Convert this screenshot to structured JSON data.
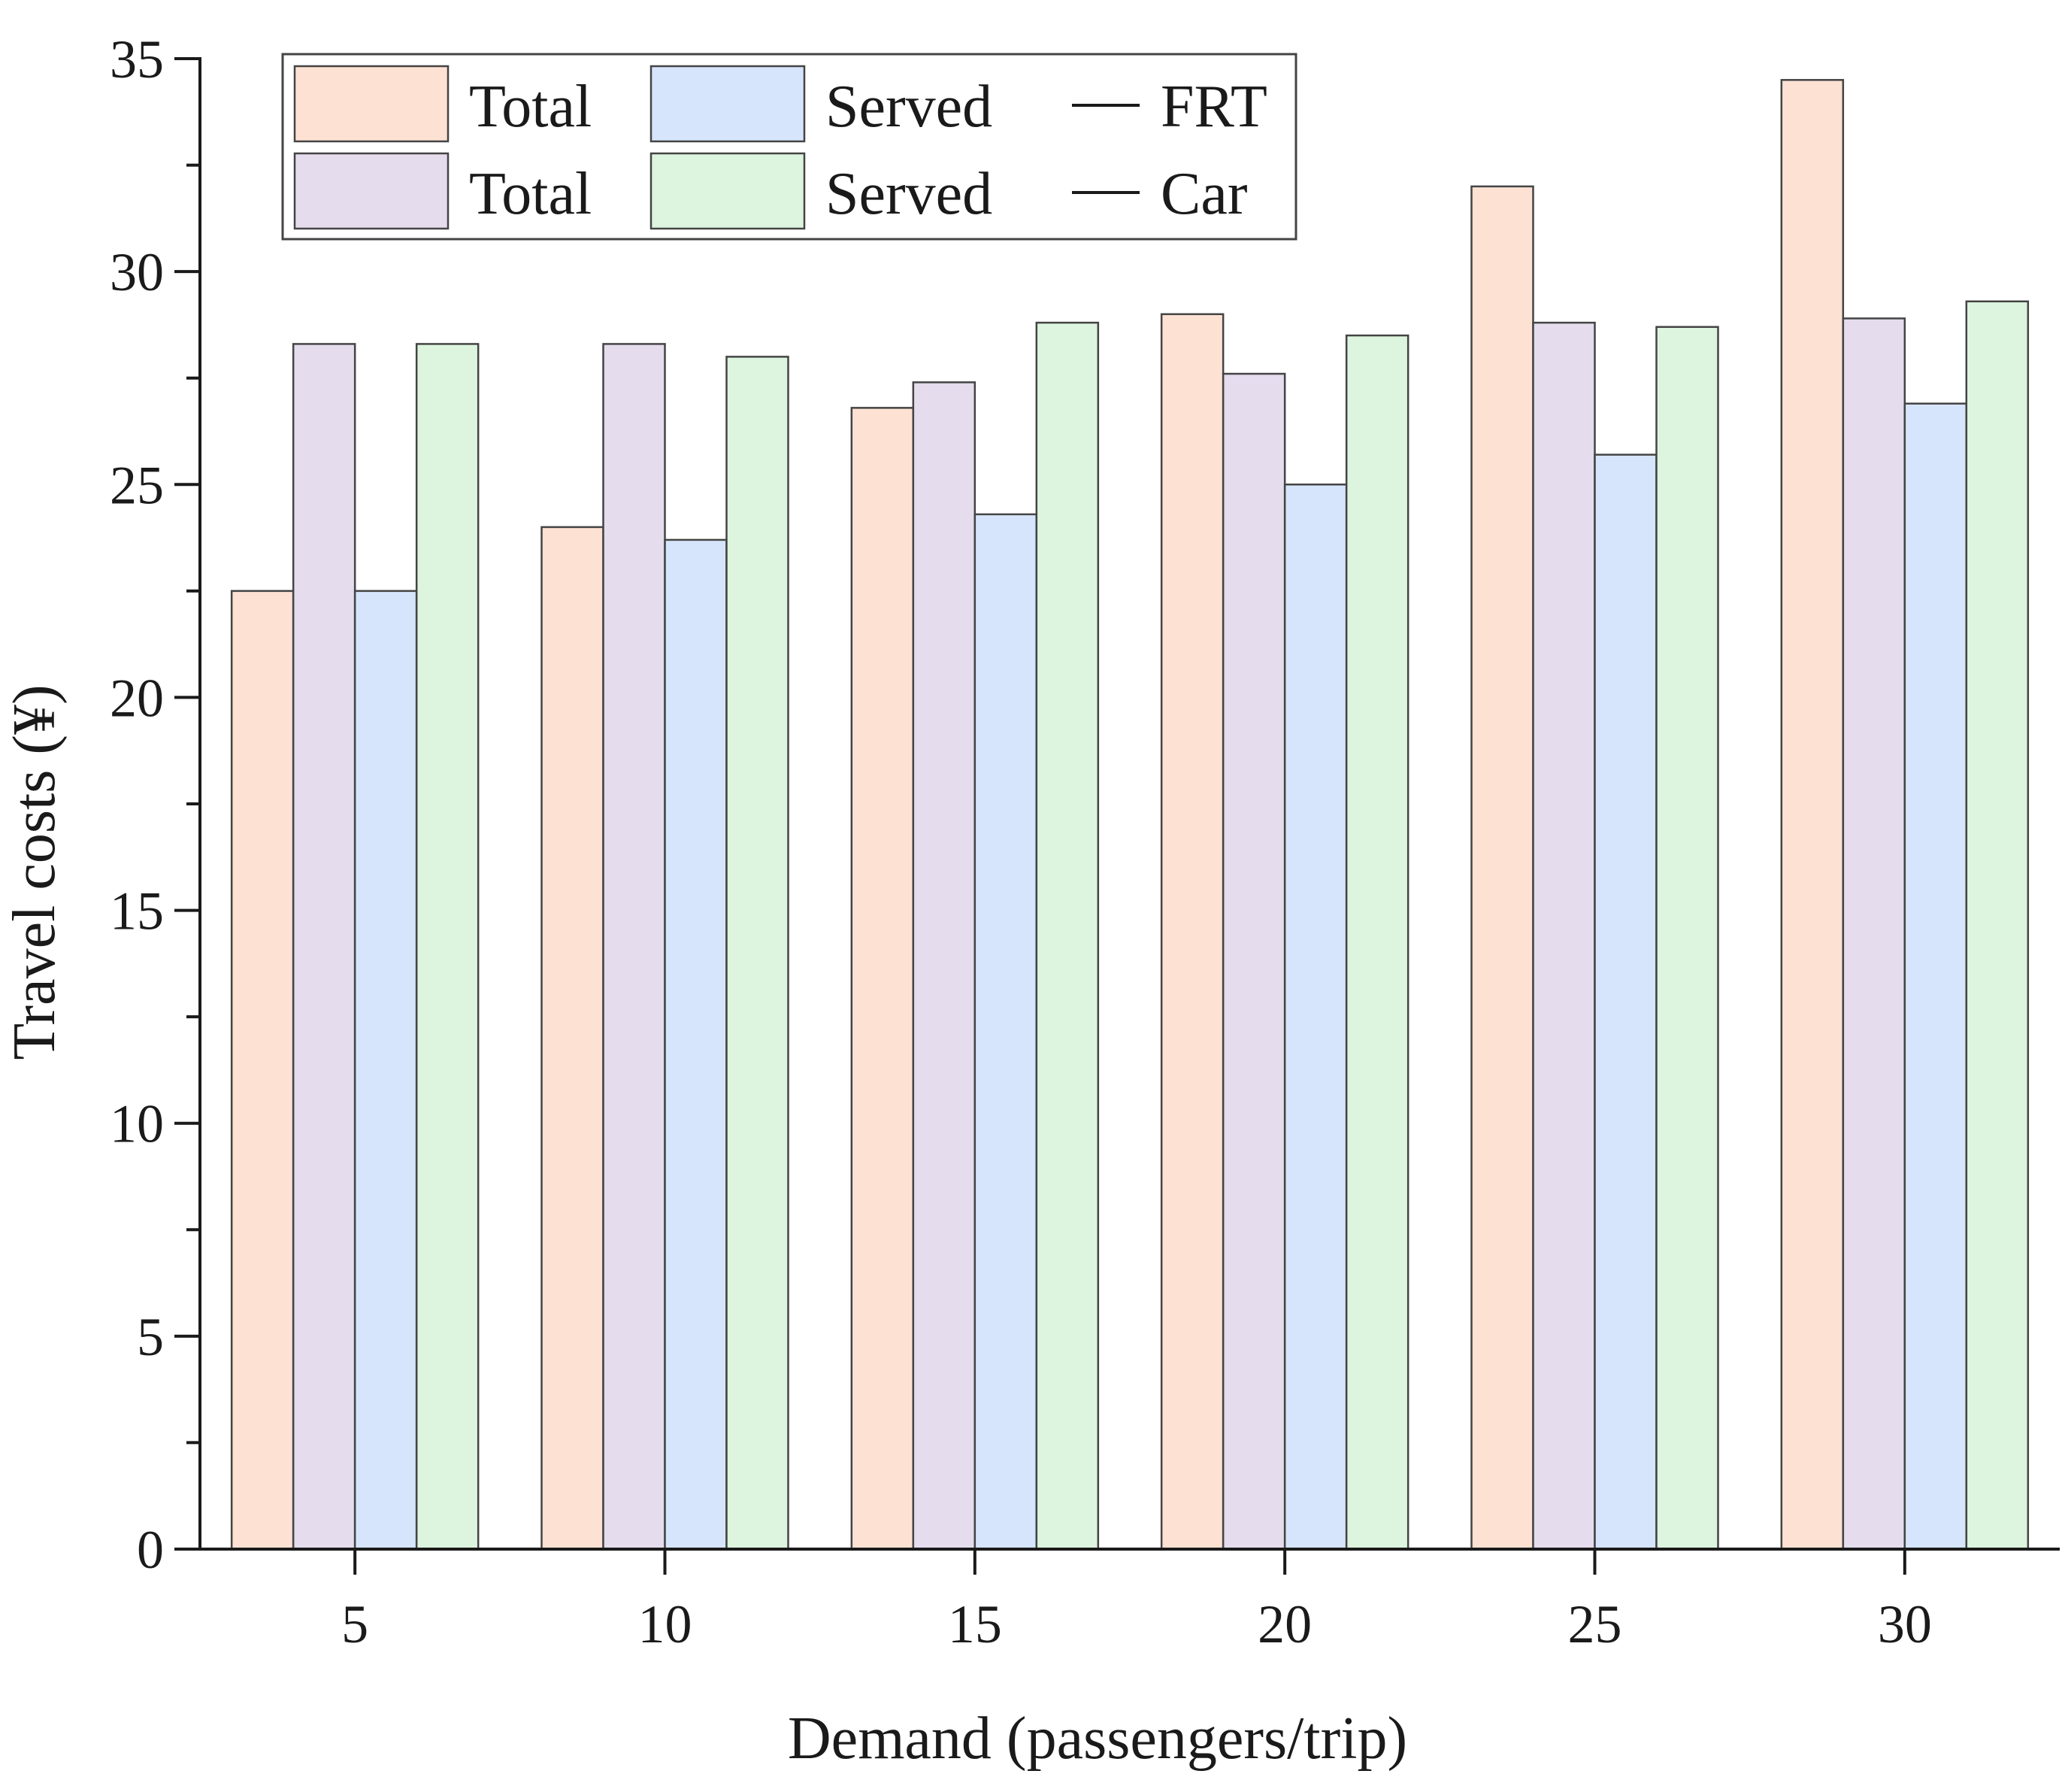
{
  "chart_data": {
    "type": "bar",
    "title": "",
    "xlabel": "Demand (passengers/trip)",
    "ylabel": "Travel costs (¥)",
    "categories": [
      "5",
      "10",
      "15",
      "20",
      "25",
      "30"
    ],
    "ylim": [
      0,
      35
    ],
    "yticks": [
      "0",
      "5",
      "10",
      "15",
      "20",
      "25",
      "30",
      "35"
    ],
    "grid": false,
    "legend_position": "top-left",
    "series": [
      {
        "name": "Total",
        "group": "FRT",
        "color": "#FDE2D3",
        "values": [
          22.5,
          24.0,
          26.8,
          29.0,
          32.0,
          34.5
        ]
      },
      {
        "name": "Total",
        "group": "Car",
        "color": "#E5DCEE",
        "values": [
          28.3,
          28.3,
          27.4,
          27.6,
          28.8,
          28.9
        ]
      },
      {
        "name": "Served",
        "group": "FRT",
        "color": "#D6E5FB",
        "values": [
          22.5,
          23.7,
          24.3,
          25.0,
          25.7,
          26.9
        ]
      },
      {
        "name": "Served",
        "group": "Car",
        "color": "#DDF5DE",
        "values": [
          28.3,
          28.0,
          28.8,
          28.5,
          28.7,
          29.3
        ]
      }
    ],
    "legend": {
      "rows": [
        [
          {
            "label": "Total",
            "color": "#FDE2D3"
          },
          {
            "label": "Served",
            "color": "#D6E5FB"
          },
          {
            "label": "FRT",
            "line": true
          }
        ],
        [
          {
            "label": "Total",
            "color": "#E5DCEE"
          },
          {
            "label": "Served",
            "color": "#DDF5DE"
          },
          {
            "label": "Car",
            "line": true
          }
        ]
      ]
    }
  }
}
